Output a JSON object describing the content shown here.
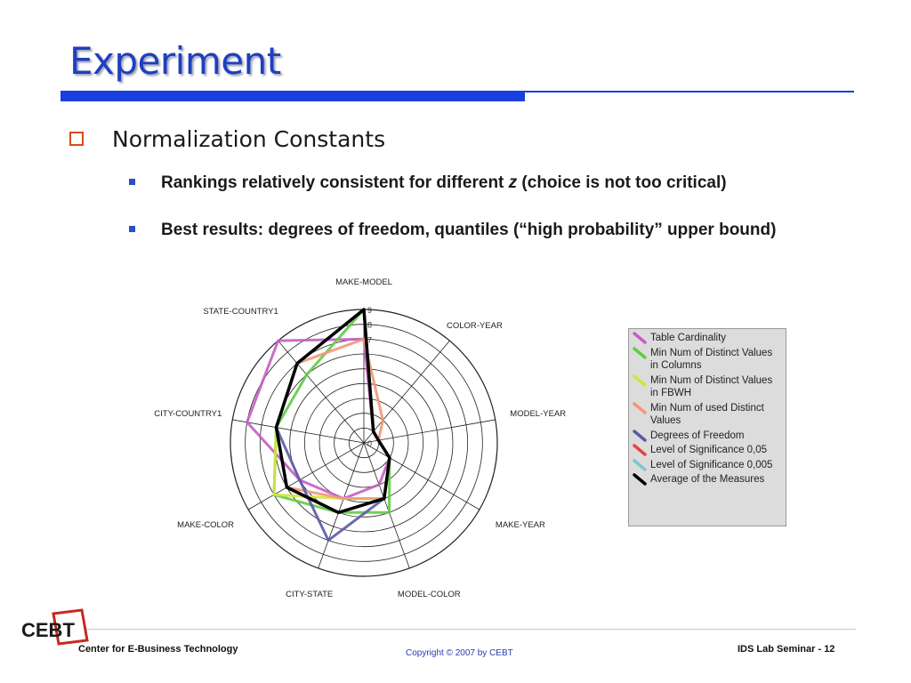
{
  "slide": {
    "title": "Experiment",
    "bullet_level1": "Normalization Constants",
    "bullet_level2": [
      {
        "before": "Rankings relatively consistent for different ",
        "italic": "z",
        "after": " (choice is not too critical)"
      },
      {
        "before": "Best results: degrees of freedom, quantiles (“high probability” upper bound)",
        "italic": "",
        "after": ""
      }
    ]
  },
  "footer": {
    "left": "Center for E-Business Technology",
    "copyright": "Copyright © 2007 by CEBT",
    "right": "IDS Lab Seminar - 12",
    "logo_text": "CEBT"
  },
  "colors": {
    "title": "#1f3fbf",
    "accent_bar": "#1a3fe0",
    "checkbox_bullet": "#d94a1e",
    "square_bullet": "#2b4fc8",
    "logo_red": "#c8281e"
  },
  "chart_data": {
    "type": "radar",
    "axes": [
      "MAKE-MODEL",
      "COLOR-YEAR",
      "MODEL-YEAR",
      "MAKE-YEAR",
      "MODEL-COLOR",
      "CITY-STATE",
      "MAKE-COLOR",
      "CITY-COUNTRY1",
      "STATE-COUNTRY1"
    ],
    "scale_labels": [
      "0",
      "7",
      "8",
      "9"
    ],
    "rmax": 9,
    "rings": 9,
    "legend_placement": "right",
    "series": [
      {
        "name": "Table Cardinality",
        "color": "#c35ec4",
        "values": [
          7,
          1,
          1,
          2,
          3,
          4,
          5,
          8,
          9
        ]
      },
      {
        "name": "Min Num of Distinct Values in Columns",
        "color": "#5fcc45",
        "values": [
          9,
          1,
          1,
          2,
          5,
          5,
          7,
          6,
          6
        ]
      },
      {
        "name": "Min Num of Distinct Values in FBWH",
        "color": "#d2e43e",
        "values": [
          9,
          1,
          1,
          2,
          4,
          4,
          7,
          6,
          7
        ]
      },
      {
        "name": "Min Num of used Distinct Values",
        "color": "#f09878",
        "values": [
          7,
          2,
          1,
          2,
          4,
          4,
          6,
          6,
          7
        ]
      },
      {
        "name": "Degrees of Freedom",
        "color": "#5a5aa8",
        "values": [
          9,
          1,
          1,
          2,
          4,
          7,
          5,
          6,
          7
        ]
      },
      {
        "name": "Level of Significance 0,05",
        "color": "#e24545",
        "values": [
          9,
          1,
          1,
          2,
          4,
          5,
          6,
          6,
          7
        ]
      },
      {
        "name": "Level of Significance 0,005",
        "color": "#7cc9c9",
        "values": [
          9,
          1,
          1,
          2,
          4,
          5,
          6,
          6,
          7
        ]
      },
      {
        "name": "Average of the Measures",
        "color": "#000000",
        "values": [
          9,
          1,
          1,
          2,
          4,
          5,
          6,
          6,
          7
        ]
      }
    ]
  }
}
